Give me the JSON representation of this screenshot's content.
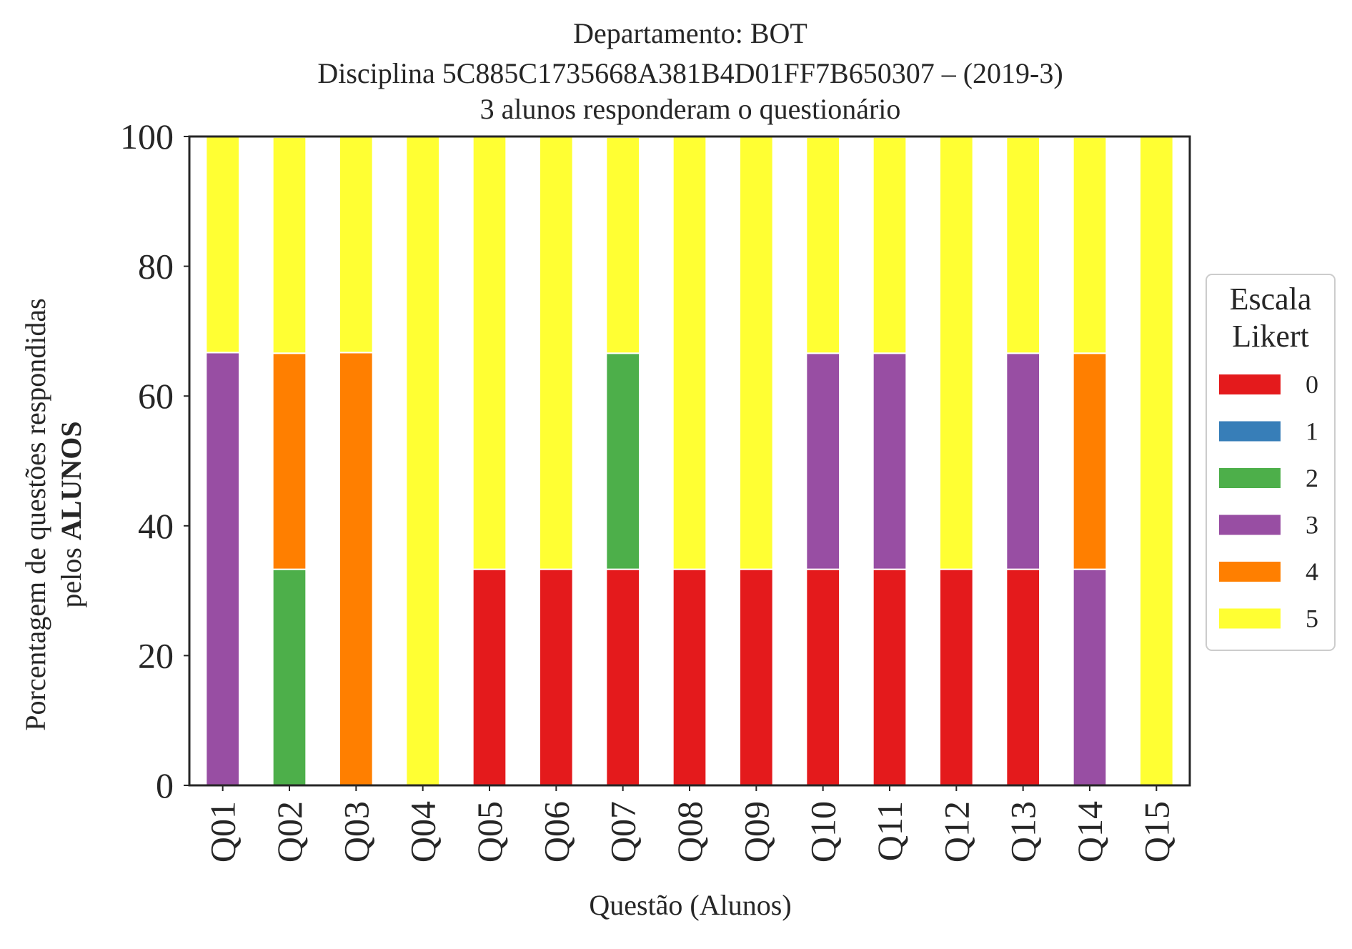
{
  "chart_data": {
    "type": "bar",
    "stacked": true,
    "title": "Departamento: BOT",
    "subtitle_lines": [
      "Disciplina 5C885C1735668A381B4D01FF7B650307 – (2019-3)",
      "3 alunos responderam o questionário"
    ],
    "xlabel": "Questão (Alunos)",
    "ylabel_line1": "Porcentagem de questões respondidas",
    "ylabel_line2_prefix": "pelos ",
    "ylabel_line2_bold": "ALUNOS",
    "ylim": [
      0,
      100
    ],
    "yticks": [
      "0",
      "20",
      "40",
      "60",
      "80",
      "100"
    ],
    "grid": false,
    "categories": [
      "Q01",
      "Q02",
      "Q03",
      "Q04",
      "Q05",
      "Q06",
      "Q07",
      "Q08",
      "Q09",
      "Q10",
      "Q11",
      "Q12",
      "Q13",
      "Q14",
      "Q15"
    ],
    "legend": {
      "title_lines": [
        "Escala",
        "Likert"
      ],
      "placement": "right"
    },
    "series": [
      {
        "name": "0",
        "color": "#e41a1c",
        "values": [
          0,
          0,
          0,
          0,
          33.3,
          33.3,
          33.3,
          33.3,
          33.3,
          33.3,
          33.3,
          33.3,
          33.3,
          0,
          0
        ]
      },
      {
        "name": "1",
        "color": "#377eb8",
        "values": [
          0,
          0,
          0,
          0,
          0,
          0,
          0,
          0,
          0,
          0,
          0,
          0,
          0,
          0,
          0
        ]
      },
      {
        "name": "2",
        "color": "#4daf4a",
        "values": [
          0,
          33.3,
          0,
          0,
          0,
          0,
          33.3,
          0,
          0,
          0,
          0,
          0,
          0,
          0,
          0
        ]
      },
      {
        "name": "3",
        "color": "#984ea3",
        "values": [
          66.7,
          0,
          0,
          0,
          0,
          0,
          0,
          0,
          0,
          33.3,
          33.3,
          0,
          33.3,
          33.3,
          0
        ]
      },
      {
        "name": "4",
        "color": "#ff7f00",
        "values": [
          0,
          33.3,
          66.7,
          0,
          0,
          0,
          0,
          0,
          0,
          0,
          0,
          0,
          0,
          33.3,
          0
        ]
      },
      {
        "name": "5",
        "color": "#ffff33",
        "values": [
          33.3,
          33.3,
          33.3,
          100,
          66.7,
          66.7,
          33.3,
          66.7,
          66.7,
          33.3,
          33.3,
          66.7,
          33.3,
          33.3,
          100
        ]
      }
    ]
  }
}
